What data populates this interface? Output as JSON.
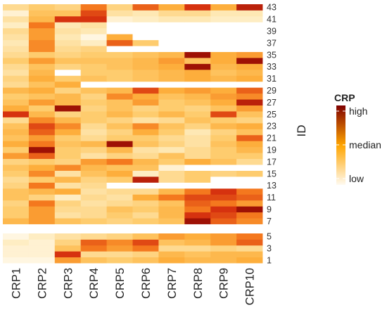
{
  "chart_data": {
    "type": "heatmap",
    "title": "",
    "xlabel": "",
    "ylabel": "ID",
    "columns": [
      "CRP1",
      "CRP2",
      "CRP3",
      "CRP4",
      "CRP5",
      "CRP6",
      "CRP7",
      "CRP8",
      "CRP9",
      "CRP10"
    ],
    "y_tick_labels": [
      "43",
      "41",
      "39",
      "37",
      "35",
      "33",
      "31",
      "29",
      "27",
      "25",
      "23",
      "21",
      "19",
      "17",
      "15",
      "13",
      "11",
      "9",
      "7",
      "5",
      "3",
      "1"
    ],
    "scale_min": 0,
    "scale_max": 1,
    "rows": [
      {
        "id": 1,
        "values": [
          0.05,
          0.05,
          0.6,
          0.45,
          0.4,
          0.45,
          0.55,
          0.5,
          0.5,
          0.55
        ]
      },
      {
        "id": 2,
        "values": [
          0.1,
          0.1,
          0.85,
          0.3,
          0.3,
          0.35,
          0.5,
          0.45,
          0.5,
          0.5
        ]
      },
      {
        "id": 3,
        "values": [
          0.1,
          0.1,
          0.45,
          0.7,
          0.6,
          0.7,
          0.3,
          0.3,
          0.35,
          0.3
        ]
      },
      {
        "id": 4,
        "values": [
          0.15,
          0.1,
          0.35,
          0.75,
          0.65,
          0.8,
          0.45,
          0.5,
          0.6,
          0.75
        ]
      },
      {
        "id": 5,
        "values": [
          0.05,
          0.15,
          0.25,
          0.3,
          0.35,
          0.45,
          0.6,
          0.55,
          0.6,
          0.7
        ]
      },
      {
        "id": 6,
        "values": [
          null,
          null,
          null,
          null,
          null,
          null,
          null,
          null,
          null,
          null
        ]
      },
      {
        "id": 7,
        "values": [
          0.5,
          0.6,
          0.45,
          0.4,
          0.35,
          0.4,
          0.45,
          0.95,
          0.75,
          0.65
        ]
      },
      {
        "id": 8,
        "values": [
          0.4,
          0.6,
          0.25,
          0.3,
          0.4,
          0.3,
          0.5,
          0.85,
          0.8,
          0.7
        ]
      },
      {
        "id": 9,
        "values": [
          0.4,
          0.6,
          0.3,
          0.3,
          0.45,
          0.4,
          0.5,
          0.7,
          0.85,
          0.95
        ]
      },
      {
        "id": 10,
        "values": [
          0.35,
          0.7,
          0.35,
          0.25,
          0.3,
          0.35,
          0.45,
          0.75,
          0.7,
          0.6
        ]
      },
      {
        "id": 11,
        "values": [
          0.45,
          0.35,
          0.15,
          0.3,
          0.25,
          0.55,
          0.7,
          0.8,
          0.8,
          0.75
        ]
      },
      {
        "id": 12,
        "values": [
          0.45,
          0.5,
          0.55,
          0.25,
          0.3,
          0.3,
          0.5,
          0.7,
          0.85,
          0.7
        ]
      },
      {
        "id": 13,
        "values": [
          0.35,
          0.7,
          0.25,
          0.3,
          null,
          null,
          null,
          null,
          null,
          null
        ]
      },
      {
        "id": 14,
        "values": [
          0.3,
          0.4,
          0.5,
          0.35,
          0.4,
          0.9,
          0.3,
          0.4,
          null,
          null
        ]
      },
      {
        "id": 15,
        "values": [
          0.4,
          0.65,
          0.25,
          0.45,
          0.55,
          0.15,
          0.3,
          0.4,
          0.35,
          0.4
        ]
      },
      {
        "id": 16,
        "values": [
          0.45,
          0.55,
          0.65,
          0.5,
          0.45,
          0.45,
          0.1,
          null,
          null,
          null
        ]
      },
      {
        "id": 17,
        "values": [
          0.35,
          0.4,
          0.35,
          0.6,
          0.7,
          0.5,
          0.4,
          0.55,
          0.45,
          0.3
        ]
      },
      {
        "id": 18,
        "values": [
          0.6,
          0.75,
          0.4,
          0.25,
          0.35,
          0.3,
          0.45,
          0.3,
          0.4,
          0.4
        ]
      },
      {
        "id": 19,
        "values": [
          0.4,
          0.95,
          0.4,
          0.35,
          0.5,
          0.25,
          0.2,
          0.3,
          0.4,
          0.5
        ]
      },
      {
        "id": 20,
        "values": [
          0.55,
          0.7,
          0.45,
          0.5,
          0.95,
          0.45,
          0.35,
          0.25,
          0.45,
          0.55
        ]
      },
      {
        "id": 21,
        "values": [
          0.45,
          0.6,
          0.4,
          0.3,
          0.4,
          0.4,
          0.3,
          0.25,
          0.4,
          0.75
        ]
      },
      {
        "id": 22,
        "values": [
          0.5,
          0.75,
          0.55,
          0.25,
          0.35,
          0.55,
          0.4,
          0.2,
          0.35,
          0.45
        ]
      },
      {
        "id": 23,
        "values": [
          0.45,
          0.8,
          0.65,
          0.3,
          0.45,
          0.65,
          0.45,
          0.35,
          0.5,
          0.55
        ]
      },
      {
        "id": 24,
        "values": [
          0.3,
          0.65,
          0.5,
          0.4,
          0.35,
          0.25,
          0.3,
          0.45,
          0.4,
          0.35
        ]
      },
      {
        "id": 25,
        "values": [
          0.85,
          0.5,
          0.35,
          0.4,
          0.5,
          0.4,
          0.5,
          0.4,
          0.8,
          0.45
        ]
      },
      {
        "id": 26,
        "values": [
          0.55,
          0.4,
          0.95,
          0.35,
          0.45,
          0.35,
          0.4,
          0.35,
          0.45,
          0.6
        ]
      },
      {
        "id": 27,
        "values": [
          0.45,
          0.6,
          0.5,
          0.4,
          0.45,
          0.6,
          0.4,
          0.45,
          0.55,
          0.9
        ]
      },
      {
        "id": 28,
        "values": [
          0.4,
          0.45,
          0.5,
          0.35,
          0.65,
          0.55,
          0.45,
          0.5,
          0.6,
          0.65
        ]
      },
      {
        "id": 29,
        "values": [
          0.5,
          0.55,
          0.35,
          0.45,
          0.5,
          0.8,
          0.55,
          0.6,
          0.55,
          0.75
        ]
      },
      {
        "id": 30,
        "values": [
          0.3,
          0.45,
          0.55,
          null,
          null,
          null,
          null,
          null,
          null,
          null
        ]
      },
      {
        "id": 31,
        "values": [
          0.35,
          0.55,
          0.4,
          0.45,
          0.4,
          0.45,
          0.5,
          0.55,
          0.5,
          0.55
        ]
      },
      {
        "id": 32,
        "values": [
          0.25,
          0.5,
          null,
          0.4,
          0.4,
          0.45,
          0.5,
          0.55,
          0.45,
          0.5
        ]
      },
      {
        "id": 33,
        "values": [
          0.3,
          0.45,
          0.35,
          0.4,
          0.45,
          0.5,
          0.55,
          0.95,
          0.5,
          0.55
        ]
      },
      {
        "id": 34,
        "values": [
          0.4,
          0.6,
          0.45,
          0.45,
          0.45,
          0.5,
          0.6,
          0.45,
          0.55,
          0.95
        ]
      },
      {
        "id": 35,
        "values": [
          0.3,
          0.4,
          0.35,
          0.4,
          0.4,
          0.45,
          0.5,
          0.95,
          0.55,
          0.6
        ]
      },
      {
        "id": 36,
        "values": [
          0.25,
          0.65,
          0.3,
          0.35,
          null,
          null,
          null,
          null,
          null,
          null
        ]
      },
      {
        "id": 37,
        "values": [
          0.2,
          0.65,
          0.25,
          0.15,
          0.75,
          0.4,
          null,
          null,
          null,
          null
        ]
      },
      {
        "id": 38,
        "values": [
          0.25,
          0.6,
          0.2,
          0.05,
          0.55,
          null,
          null,
          null,
          null,
          null
        ]
      },
      {
        "id": 39,
        "values": [
          0.3,
          0.6,
          0.25,
          0.2,
          null,
          null,
          null,
          null,
          null,
          null
        ]
      },
      {
        "id": 40,
        "values": [
          0.15,
          0.7,
          0.2,
          0.25,
          null,
          null,
          null,
          null,
          null,
          null
        ]
      },
      {
        "id": 41,
        "values": [
          0.25,
          0.5,
          0.85,
          0.85,
          0.1,
          0.15,
          0.2,
          0.2,
          0.15,
          0.15
        ]
      },
      {
        "id": 42,
        "values": [
          0.1,
          0.45,
          0.45,
          0.8,
          0.25,
          0.2,
          0.3,
          0.3,
          0.2,
          0.2
        ]
      },
      {
        "id": 43,
        "values": [
          0.3,
          0.4,
          0.35,
          0.7,
          0.35,
          0.75,
          0.55,
          0.85,
          0.55,
          0.9
        ]
      }
    ],
    "gap_after_row_id": 5,
    "legend": {
      "title": "CRP",
      "labels": [
        "high",
        "median",
        "low"
      ],
      "placement": "right",
      "colors": [
        "#7f0000",
        "#ffa500",
        "#fffaf0"
      ]
    }
  }
}
